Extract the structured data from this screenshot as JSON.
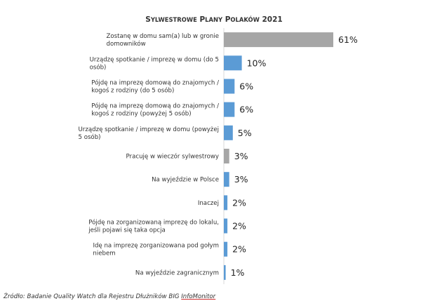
{
  "chart_data": {
    "type": "bar",
    "orientation": "horizontal",
    "title": "Sylwestrowe plany Polaków 2021",
    "categories": [
      "Zostanę w domu sam(a) lub w gronie domowników",
      "Urządzę spotkanie / imprezę w domu (do 5 osób)",
      "Pójdę na imprezę domową do znajomych / kogoś z rodziny (do 5 osób)",
      "Pójdę na imprezę domową do znajomych / kogoś z rodziny (powyżej 5 osób)",
      "Urządzę spotkanie / imprezę w domu (powyżej 5 osób)",
      "Pracuję w wieczór sylwestrowy",
      "Na wyjeździe w Polsce",
      "Inaczej",
      "Pójdę na zorganizowaną imprezę do lokalu, jeśli pojawi się taka opcja",
      "Idę na imprezę zorganizowana pod gołym niebem",
      "Na wyjeździe zagranicznym"
    ],
    "values": [
      61,
      10,
      6,
      6,
      5,
      3,
      3,
      2,
      2,
      2,
      1
    ],
    "value_labels": [
      "61%",
      "10%",
      "6%",
      "6%",
      "5%",
      "3%",
      "3%",
      "2%",
      "2%",
      "2%",
      "1%"
    ],
    "bar_colors": [
      "#a6a6a6",
      "#5b9bd5",
      "#5b9bd5",
      "#5b9bd5",
      "#5b9bd5",
      "#a6a6a6",
      "#5b9bd5",
      "#5b9bd5",
      "#5b9bd5",
      "#5b9bd5",
      "#5b9bd5"
    ],
    "xlim": [
      0,
      61
    ],
    "grid": false,
    "legend": "none"
  },
  "source": {
    "prefix": "Źródło: Badanie Quality Watch dla Rejestru Dłużników BIG ",
    "underlined": "InfoMonitor"
  }
}
